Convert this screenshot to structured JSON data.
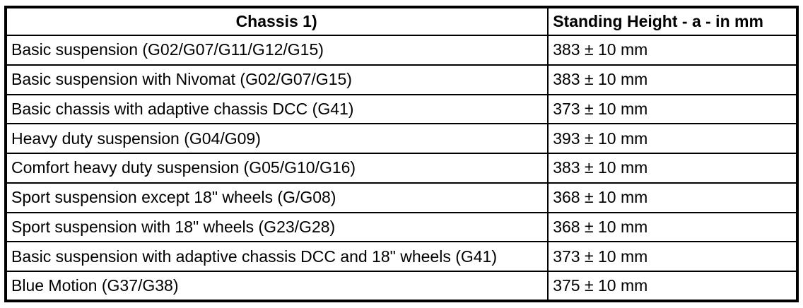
{
  "table": {
    "headers": {
      "chassis": "Chassis 1)",
      "standing_height": "Standing Height - a - in mm"
    },
    "rows": [
      {
        "chassis": "Basic suspension (G02/G07/G11/G12/G15)",
        "standing_height": "383 ± 10 mm"
      },
      {
        "chassis": "Basic suspension with Nivomat (G02/G07/G15)",
        "standing_height": "383 ± 10 mm"
      },
      {
        "chassis": "Basic chassis with adaptive chassis DCC (G41)",
        "standing_height": "373 ± 10 mm"
      },
      {
        "chassis": "Heavy duty suspension (G04/G09)",
        "standing_height": "393 ± 10 mm"
      },
      {
        "chassis": "Comfort heavy duty suspension (G05/G10/G16)",
        "standing_height": "383 ± 10 mm"
      },
      {
        "chassis": "Sport suspension except 18\" wheels (G/G08)",
        "standing_height": "368 ± 10 mm"
      },
      {
        "chassis": "Sport suspension with 18\" wheels (G23/G28)",
        "standing_height": "368 ± 10 mm"
      },
      {
        "chassis": "Basic suspension with adaptive chassis DCC and 18\" wheels (G41)",
        "standing_height": "373 ± 10 mm"
      },
      {
        "chassis": "Blue Motion (G37/G38)",
        "standing_height": "375 ± 10 mm"
      }
    ]
  }
}
